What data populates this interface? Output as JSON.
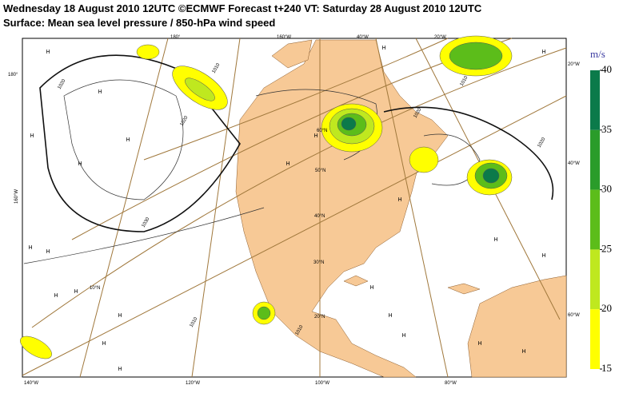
{
  "header": {
    "title": "Wednesday 18 August 2010 12UTC ©ECMWF Forecast t+240 VT: Saturday 28 August 2010 12UTC",
    "subtitle": "Surface: Mean sea level pressure / 850-hPa wind speed"
  },
  "colorbar": {
    "unit": "m/s",
    "range": [
      15,
      40
    ],
    "ticks": [
      40,
      35,
      30,
      25,
      20,
      15
    ],
    "colors": [
      "#0b7a4a",
      "#2a9c2a",
      "#5cbd1a",
      "#bfe81f",
      "#ffff00"
    ]
  },
  "longitude_labels": [
    "140°W",
    "120°W",
    "100°W",
    "80°W",
    "180°",
    "160°W",
    "40°W",
    "20°W"
  ],
  "edge_labels": [
    "180°",
    "160°W",
    "20°W",
    "40°W",
    "60°W"
  ],
  "latitude_labels": [
    "60°N",
    "50°N",
    "40°N",
    "30°N",
    "20°N",
    "10°N"
  ],
  "isobar_labels": [
    "1020",
    "1010",
    "1030",
    "1020",
    "1010",
    "1010",
    "1020",
    "1020",
    "1010"
  ],
  "high_labels": [
    "H",
    "H",
    "H",
    "H",
    "H",
    "H",
    "H",
    "H",
    "H",
    "H",
    "H",
    "H",
    "H",
    "H",
    "H",
    "H",
    "H",
    "H",
    "H",
    "H",
    "H",
    "H",
    "H",
    "H"
  ]
}
